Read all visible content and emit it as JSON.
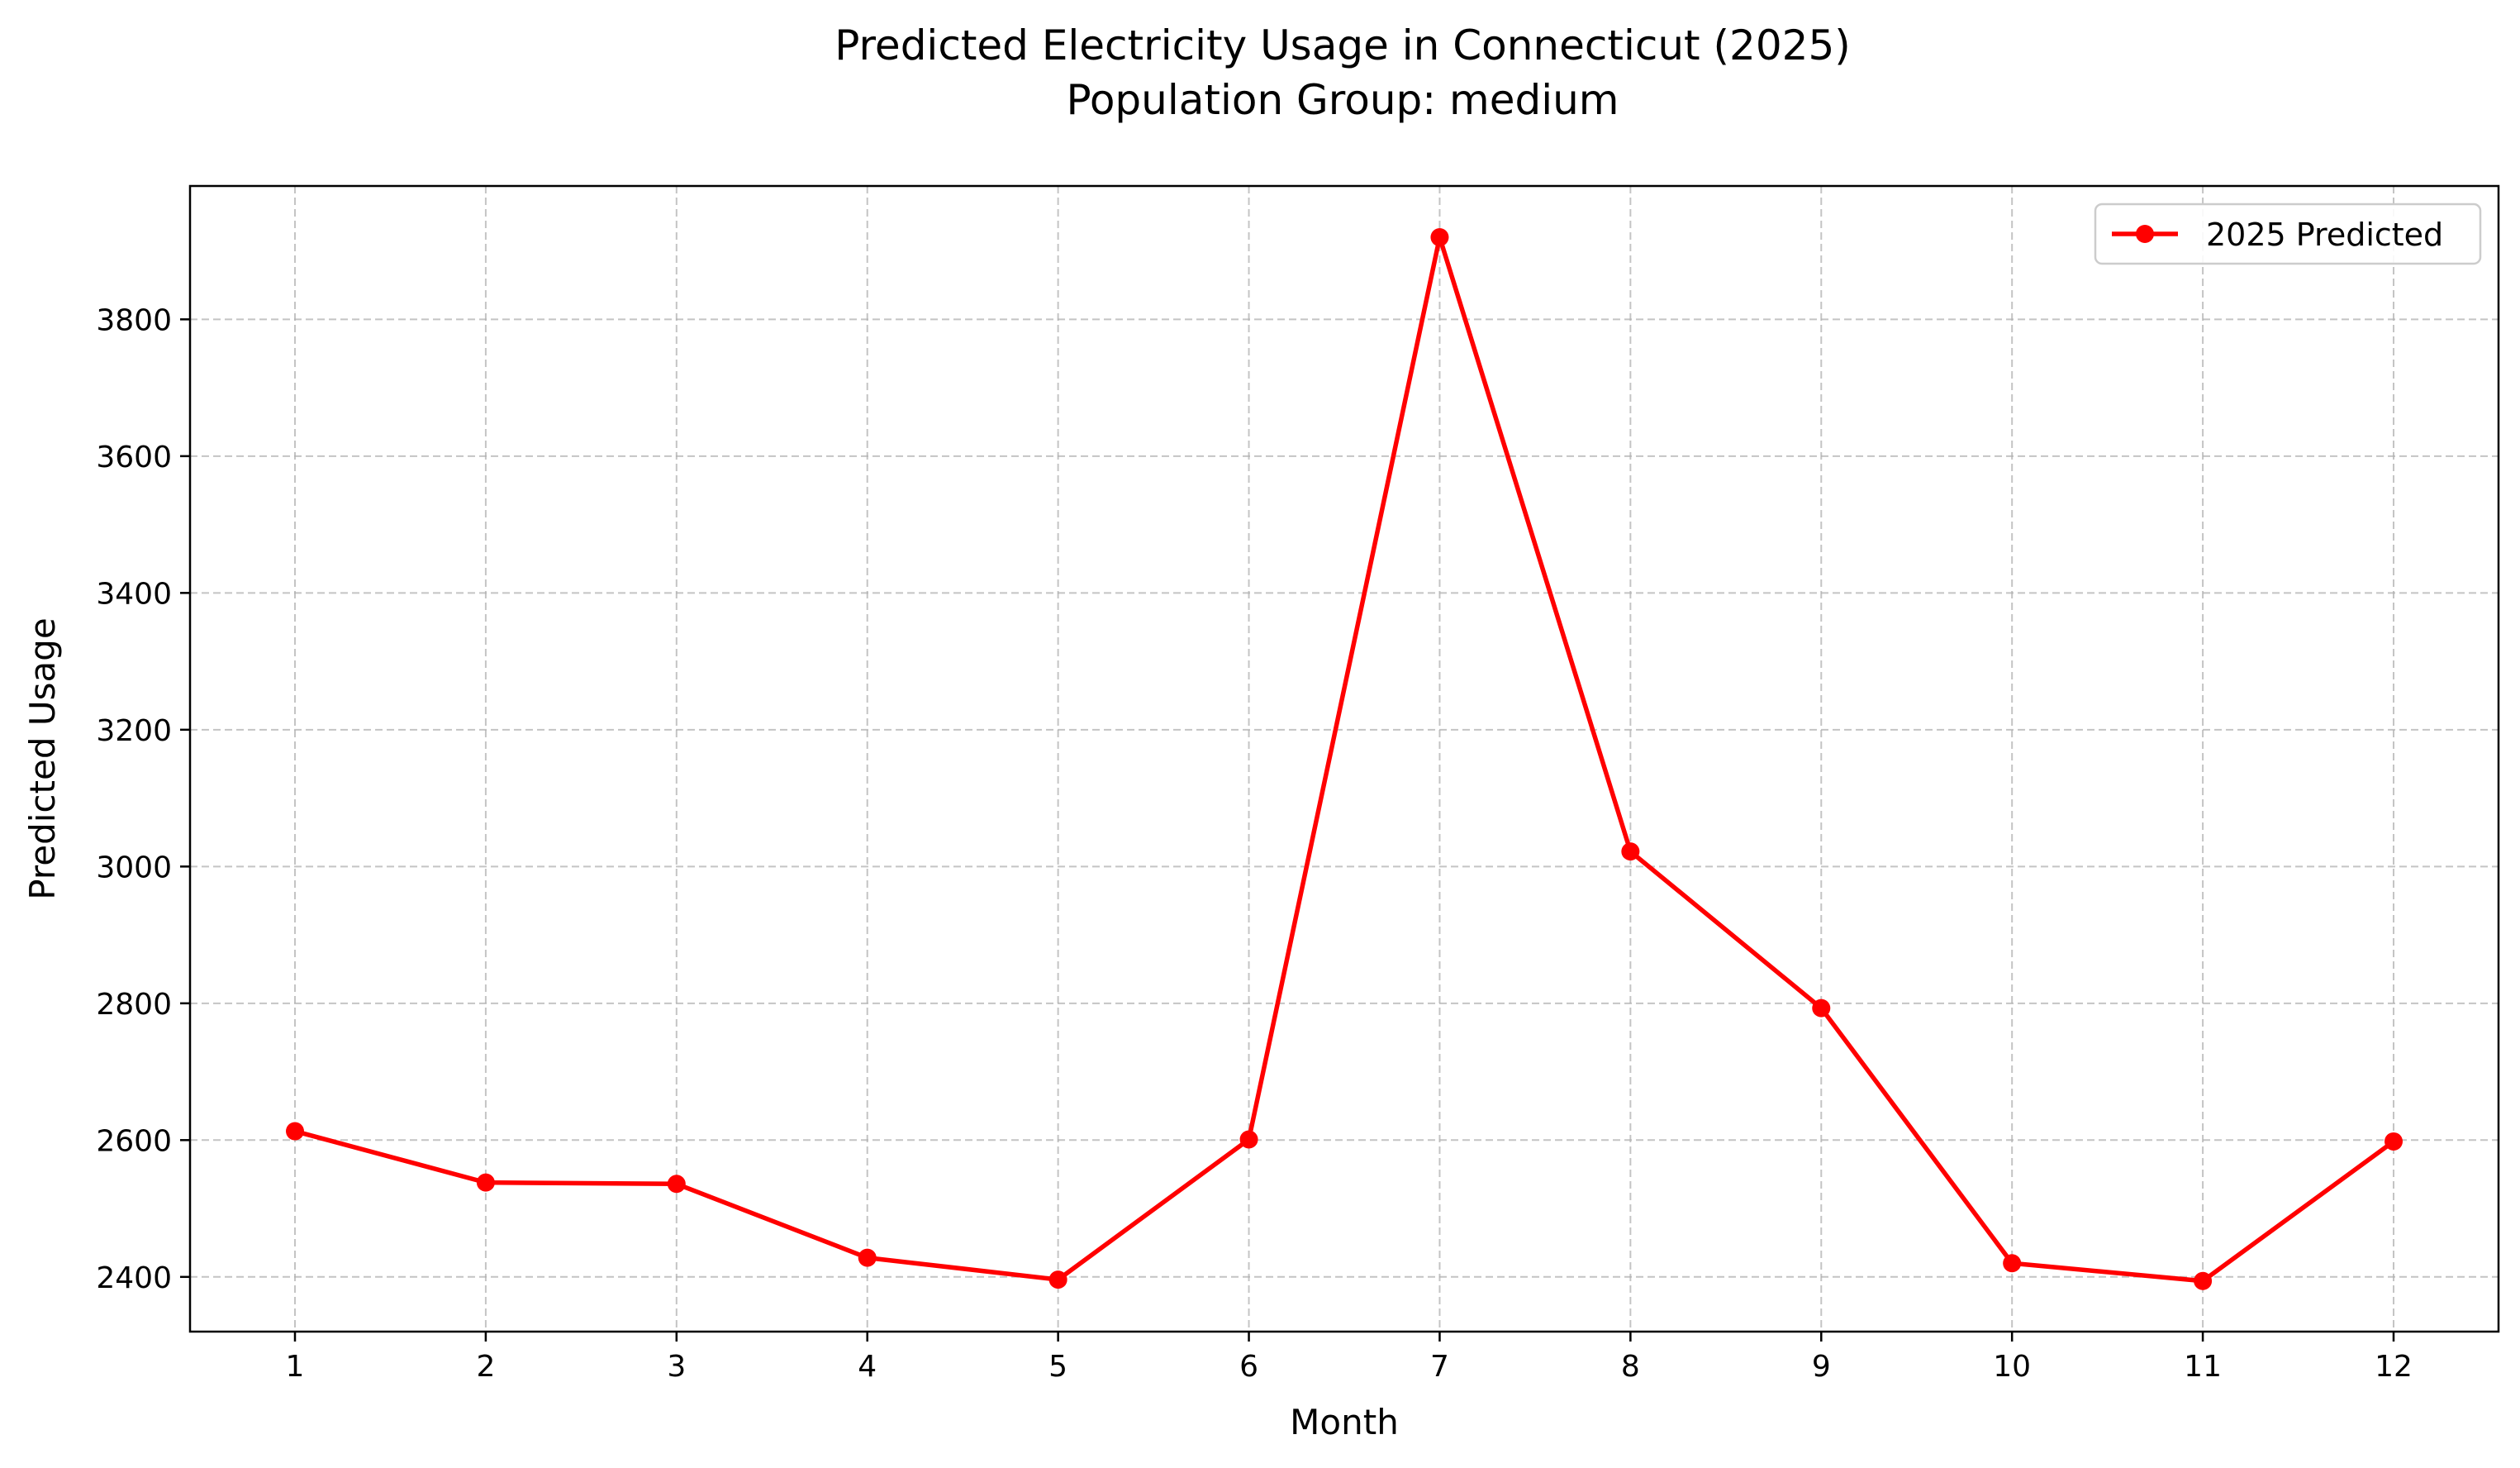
{
  "chart_data": {
    "type": "line",
    "title": "Predicted Electricity Usage in Connecticut (2025)",
    "subtitle": "Population Group: medium",
    "xlabel": "Month",
    "ylabel": "Predicted Usage",
    "x": [
      1,
      2,
      3,
      4,
      5,
      6,
      7,
      8,
      9,
      10,
      11,
      12
    ],
    "xticks": [
      "1",
      "2",
      "3",
      "4",
      "5",
      "6",
      "7",
      "8",
      "9",
      "10",
      "11",
      "12"
    ],
    "yticks": [
      "2400",
      "2600",
      "2800",
      "3000",
      "3200",
      "3400",
      "3600",
      "3800"
    ],
    "xlim": [
      0.45,
      12.55
    ],
    "ylim": [
      2320,
      3995
    ],
    "grid": true,
    "legend_position": "top-right",
    "series": [
      {
        "name": "2025 Predicted",
        "color": "#ff0000",
        "marker": "circle",
        "values": [
          2613,
          2538,
          2536,
          2428,
          2396,
          2601,
          3920,
          3022,
          2793,
          2420,
          2394,
          2598
        ]
      }
    ]
  }
}
